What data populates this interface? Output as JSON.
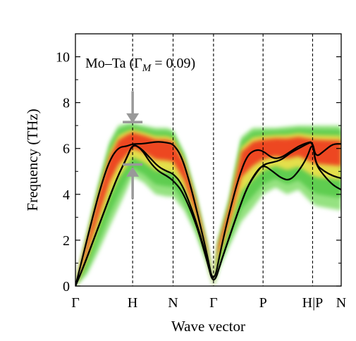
{
  "chart_data": {
    "type": "line",
    "title": "",
    "xlabel": "Wave vector",
    "ylabel": "Frequency (THz)",
    "ylim": [
      0,
      11
    ],
    "yticks": [
      0,
      2,
      4,
      6,
      8,
      10
    ],
    "grid": false,
    "legend": "none",
    "annotation": {
      "prefix": "Mo–Ta (",
      "gamma": "Γ",
      "subscript": "M",
      "suffix": " = 0.09)"
    },
    "high_symmetry_points": [
      {
        "label": "Γ",
        "k": 0.0
      },
      {
        "label": "H",
        "k": 1.0
      },
      {
        "label": "N",
        "k": 1.707
      },
      {
        "label": "Γ",
        "k": 2.414
      },
      {
        "label": "P",
        "k": 3.28
      },
      {
        "label": "H|P",
        "k": 4.146
      },
      {
        "label": "N",
        "k": 4.646
      }
    ],
    "xlim": [
      0,
      4.646
    ],
    "series": [
      {
        "k": [
          0,
          0.15,
          0.3,
          0.45,
          0.6,
          0.75,
          0.9,
          1.0,
          1.15,
          1.3,
          1.45,
          1.6,
          1.707,
          1.85,
          2.0,
          2.15,
          2.3,
          2.414,
          2.55,
          2.7,
          2.85,
          3.0,
          3.15,
          3.28,
          3.45,
          3.6,
          3.75,
          3.9,
          4.05,
          4.146,
          4.2,
          4.35,
          4.5,
          4.646
        ],
        "values": [
          0,
          1.5,
          3.0,
          4.4,
          5.5,
          6.05,
          6.1,
          6.2,
          6.2,
          6.25,
          6.3,
          6.25,
          6.2,
          5.7,
          4.5,
          3.0,
          1.4,
          0.0,
          1.7,
          3.3,
          4.7,
          5.7,
          5.95,
          5.9,
          5.55,
          5.6,
          5.85,
          6.1,
          6.25,
          6.3,
          5.6,
          5.9,
          6.2,
          6.2
        ]
      },
      {
        "k": [
          0,
          0.15,
          0.3,
          0.45,
          0.6,
          0.75,
          0.9,
          1.0,
          1.15,
          1.3,
          1.45,
          1.6,
          1.707,
          1.85,
          2.0,
          2.15,
          2.3,
          2.414,
          2.55,
          2.7,
          2.85,
          3.0,
          3.15,
          3.28,
          3.45,
          3.6,
          3.75,
          3.9,
          4.05,
          4.146,
          4.2,
          4.35,
          4.5,
          4.646
        ],
        "values": [
          0,
          0.9,
          1.9,
          2.9,
          3.9,
          4.85,
          5.6,
          6.2,
          6.0,
          5.6,
          5.2,
          5.0,
          4.9,
          4.5,
          3.6,
          2.5,
          1.2,
          0.0,
          1.1,
          2.2,
          3.3,
          4.3,
          4.9,
          5.3,
          5.4,
          5.5,
          5.8,
          6.0,
          6.2,
          6.3,
          5.3,
          5.0,
          4.8,
          4.7
        ]
      },
      {
        "k": [
          0,
          0.15,
          0.3,
          0.45,
          0.6,
          0.75,
          0.9,
          1.0,
          1.15,
          1.3,
          1.45,
          1.6,
          1.707,
          1.85,
          2.0,
          2.15,
          2.3,
          2.414,
          2.55,
          2.7,
          2.85,
          3.0,
          3.15,
          3.28,
          3.45,
          3.6,
          3.75,
          3.9,
          4.05,
          4.146,
          4.2,
          4.35,
          4.5,
          4.646
        ],
        "values": [
          0,
          0.9,
          1.9,
          2.9,
          3.9,
          4.85,
          5.6,
          6.2,
          6.0,
          5.4,
          5.0,
          4.8,
          4.6,
          4.2,
          3.4,
          2.4,
          1.1,
          0.0,
          1.1,
          2.2,
          3.3,
          4.3,
          4.95,
          5.3,
          5.0,
          4.7,
          4.6,
          5.0,
          5.6,
          6.3,
          5.3,
          4.8,
          4.4,
          4.2
        ]
      }
    ],
    "spectral_band": {
      "k": [
        0,
        0.2,
        0.4,
        0.6,
        0.75,
        0.9,
        1.0,
        1.2,
        1.4,
        1.6,
        1.707,
        1.9,
        2.1,
        2.3,
        2.414,
        2.5,
        2.7,
        2.9,
        3.1,
        3.28,
        3.5,
        3.7,
        3.9,
        4.1,
        4.146,
        4.2,
        4.4,
        4.646
      ],
      "upper": [
        0,
        2.2,
        4.4,
        6.3,
        7.0,
        7.1,
        7.1,
        7.0,
        6.9,
        6.9,
        6.8,
        5.8,
        4.0,
        1.8,
        0.0,
        2.0,
        3.9,
        6.5,
        6.9,
        6.9,
        6.9,
        6.95,
        7.0,
        7.0,
        7.0,
        7.0,
        7.0,
        7.0
      ],
      "lower": [
        0,
        0.5,
        1.5,
        2.6,
        3.4,
        4.2,
        4.8,
        4.5,
        4.0,
        3.9,
        3.9,
        3.3,
        2.3,
        1.0,
        0.0,
        0.7,
        1.8,
        2.8,
        3.4,
        4.0,
        4.3,
        4.0,
        4.2,
        3.7,
        3.6,
        3.5,
        3.4,
        3.3
      ]
    },
    "markers": [
      {
        "kind": "arrow-down",
        "k": 1.0,
        "from": 8.5,
        "to": 7.1,
        "bar": 7.15
      },
      {
        "kind": "arrow-up",
        "k": 1.0,
        "from": 3.8,
        "to": 5.2,
        "bar": 5.3
      }
    ],
    "colors": {
      "curve": "#000000",
      "band_outer": "#8fe07a",
      "band_mid": "#5acb4a",
      "band_inner": "#f2e14a",
      "band_core": "#ee3b1c",
      "marker": "#999999"
    }
  }
}
